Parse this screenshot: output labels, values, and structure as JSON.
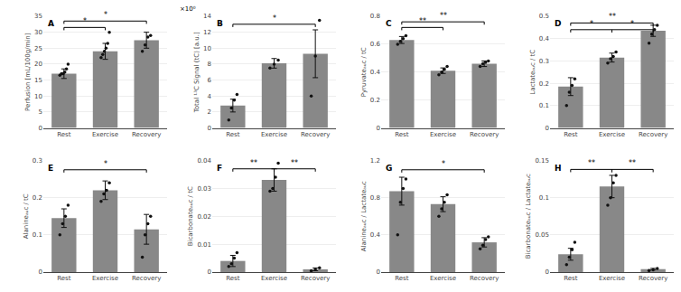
{
  "chart_data": [
    {
      "type": "bar",
      "annotations": [
        "A"
      ],
      "ylabel": "Perfusion [mL/100g/min]",
      "categories": [
        "Rest",
        "Exercise",
        "Recovery"
      ],
      "values": [
        17,
        24,
        27.5
      ],
      "errors": [
        1.5,
        2.5,
        2.5
      ],
      "points": [
        [
          16.5,
          17,
          17,
          17.5,
          18.5,
          20
        ],
        [
          22,
          23,
          24,
          25,
          26.5,
          30
        ],
        [
          24,
          26,
          28.5,
          29
        ]
      ],
      "brackets": [
        {
          "from": "Rest",
          "to": "Exercise",
          "y": 31.5,
          "label": "*"
        },
        {
          "from": "Rest",
          "to": "Recovery",
          "y": 33.5,
          "label": "*"
        }
      ],
      "ylim": [
        0,
        35
      ],
      "yticks": [
        0,
        5,
        10,
        15,
        20,
        25,
        30,
        35
      ],
      "grid": true,
      "color": "#888888"
    },
    {
      "type": "bar",
      "annotations": [
        "B",
        "×10⁰"
      ],
      "ylabel": "Total ¹³C Signal (tC) [a.u.]",
      "categories": [
        "Rest",
        "Exercise",
        "Recovery"
      ],
      "values": [
        2.8,
        8.1,
        9.3
      ],
      "errors": [
        0.8,
        0.6,
        3.0
      ],
      "points": [
        [
          1,
          2.5,
          3.5,
          4.2
        ],
        [
          7.5,
          8.0,
          8.5
        ],
        [
          4,
          9,
          13.5
        ]
      ],
      "brackets": [
        {
          "from": "Rest",
          "to": "Recovery",
          "y": 13.0,
          "label": "*"
        }
      ],
      "ylim": [
        0,
        14
      ],
      "yticks": [
        0,
        2,
        4,
        6,
        8,
        10,
        12,
        14
      ],
      "grid": true,
      "color": "#888888"
    },
    {
      "type": "bar",
      "annotations": [
        "C"
      ],
      "ylabel": "Pyruvateₐᵤᴄ / tC",
      "categories": [
        "Rest",
        "Exercise",
        "Recovery"
      ],
      "values": [
        0.63,
        0.41,
        0.46
      ],
      "errors": [
        0.025,
        0.02,
        0.02
      ],
      "points": [
        [
          0.6,
          0.62,
          0.64,
          0.66
        ],
        [
          0.38,
          0.4,
          0.42,
          0.44
        ],
        [
          0.44,
          0.46,
          0.47,
          0.48
        ]
      ],
      "brackets": [
        {
          "from": "Rest",
          "to": "Exercise",
          "y": 0.72,
          "label": "**"
        },
        {
          "from": "Rest",
          "to": "Recovery",
          "y": 0.76,
          "label": "**"
        }
      ],
      "ylim": [
        0,
        0.8
      ],
      "yticks": [
        0,
        0.2,
        0.4,
        0.6,
        0.8
      ],
      "grid": true,
      "color": "#888888"
    },
    {
      "type": "bar",
      "annotations": [
        "D"
      ],
      "ylabel": "Lactateₐᵤᴄ / tC",
      "categories": [
        "Rest",
        "Exercise",
        "Recovery"
      ],
      "values": [
        0.185,
        0.315,
        0.435
      ],
      "errors": [
        0.04,
        0.02,
        0.025
      ],
      "points": [
        [
          0.1,
          0.16,
          0.19,
          0.22
        ],
        [
          0.29,
          0.31,
          0.32,
          0.34
        ],
        [
          0.38,
          0.42,
          0.44,
          0.46
        ]
      ],
      "brackets": [
        {
          "from": "Rest",
          "to": "Exercise",
          "y": 0.44,
          "label": "*"
        },
        {
          "from": "Rest",
          "to": "Recovery",
          "y": 0.47,
          "label": "**"
        },
        {
          "from": "Exercise",
          "to": "Recovery",
          "y": 0.44,
          "label": "*"
        }
      ],
      "ylim": [
        0,
        0.5
      ],
      "yticks": [
        0,
        0.1,
        0.2,
        0.3,
        0.4,
        0.5
      ],
      "grid": true,
      "color": "#888888"
    },
    {
      "type": "bar",
      "annotations": [
        "E"
      ],
      "ylabel": "Alanineₐᵤᴄ / tC",
      "categories": [
        "Rest",
        "Exercise",
        "Recovery"
      ],
      "values": [
        0.145,
        0.22,
        0.115
      ],
      "errors": [
        0.025,
        0.025,
        0.04
      ],
      "points": [
        [
          0.1,
          0.13,
          0.15,
          0.18
        ],
        [
          0.19,
          0.21,
          0.22,
          0.24
        ],
        [
          0.04,
          0.1,
          0.13,
          0.15
        ]
      ],
      "brackets": [
        {
          "from": "Rest",
          "to": "Recovery",
          "y": 0.275,
          "label": "*"
        }
      ],
      "ylim": [
        0,
        0.3
      ],
      "yticks": [
        0,
        0.1,
        0.2,
        0.3
      ],
      "grid": true,
      "color": "#888888"
    },
    {
      "type": "bar",
      "annotations": [
        "F"
      ],
      "ylabel": "Bicarbonateₐᵤᴄ / tC",
      "categories": [
        "Rest",
        "Exercise",
        "Recovery"
      ],
      "values": [
        0.004,
        0.033,
        0.001
      ],
      "errors": [
        0.002,
        0.004,
        0.0005
      ],
      "points": [
        [
          0.002,
          0.003,
          0.005,
          0.007
        ],
        [
          0.029,
          0.03,
          0.034,
          0.039
        ],
        [
          0.0005,
          0.001,
          0.0015
        ]
      ],
      "brackets": [
        {
          "from": "Rest",
          "to": "Exercise",
          "y": 0.037,
          "label": "**"
        },
        {
          "from": "Exercise",
          "to": "Recovery",
          "y": 0.037,
          "label": "**"
        }
      ],
      "ylim": [
        0,
        0.04
      ],
      "yticks": [
        0,
        0.01,
        0.02,
        0.03,
        0.04
      ],
      "grid": true,
      "color": "#888888"
    },
    {
      "type": "bar",
      "annotations": [
        "G"
      ],
      "ylabel": "Alanineₐᵤᴄ / Lactateₐᵤᴄ",
      "categories": [
        "Rest",
        "Exercise",
        "Recovery"
      ],
      "values": [
        0.87,
        0.73,
        0.32
      ],
      "errors": [
        0.15,
        0.08,
        0.05
      ],
      "points": [
        [
          0.4,
          0.75,
          0.9,
          1.0
        ],
        [
          0.6,
          0.68,
          0.75,
          0.83
        ],
        [
          0.25,
          0.29,
          0.35,
          0.38
        ]
      ],
      "brackets": [
        {
          "from": "Rest",
          "to": "Recovery",
          "y": 1.1,
          "label": "*"
        }
      ],
      "ylim": [
        0,
        1.2
      ],
      "yticks": [
        0,
        0.4,
        0.8,
        1.2
      ],
      "grid": true,
      "color": "#888888"
    },
    {
      "type": "bar",
      "annotations": [
        "H"
      ],
      "ylabel": "Bicarbonateₐᵤᴄ / Lactateₐᵤᴄ",
      "categories": [
        "Rest",
        "Exercise",
        "Recovery"
      ],
      "values": [
        0.024,
        0.115,
        0.004
      ],
      "errors": [
        0.008,
        0.015,
        0.001
      ],
      "points": [
        [
          0.01,
          0.02,
          0.03,
          0.04
        ],
        [
          0.09,
          0.1,
          0.12,
          0.13
        ],
        [
          0.002,
          0.003,
          0.005
        ]
      ],
      "brackets": [
        {
          "from": "Rest",
          "to": "Exercise",
          "y": 0.138,
          "label": "**"
        },
        {
          "from": "Exercise",
          "to": "Recovery",
          "y": 0.138,
          "label": "**"
        }
      ],
      "ylim": [
        0,
        0.15
      ],
      "yticks": [
        0,
        0.05,
        0.1,
        0.15
      ],
      "grid": true,
      "color": "#888888"
    }
  ]
}
